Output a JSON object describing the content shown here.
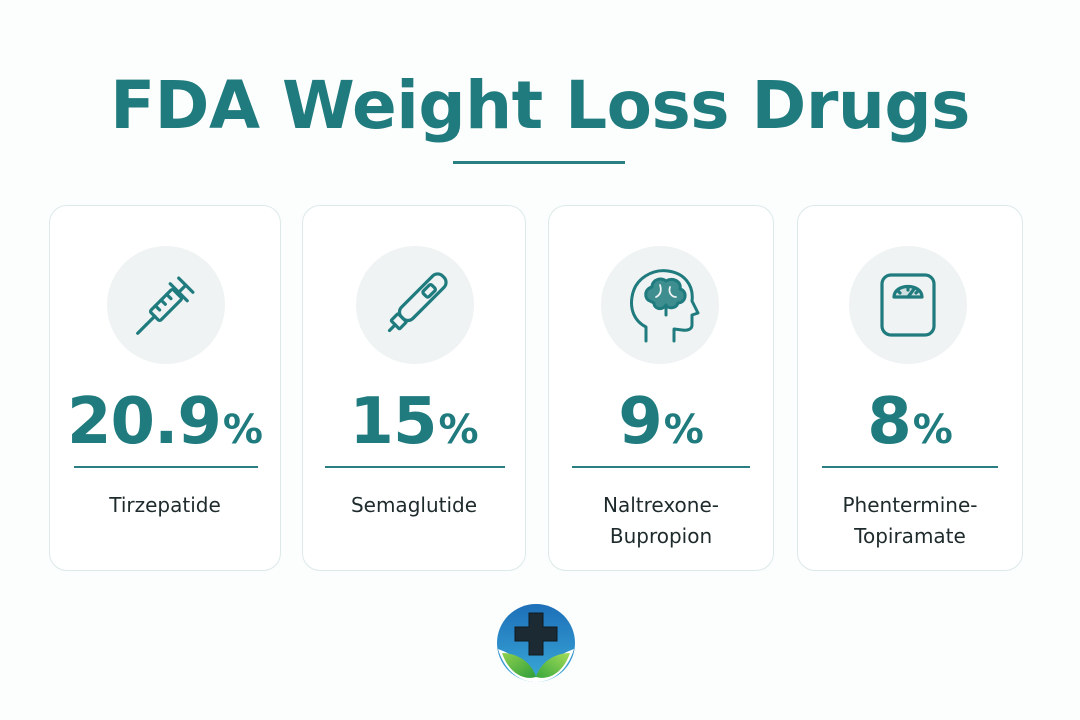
{
  "header": {
    "title": "FDA Weight Loss Drugs"
  },
  "cards": [
    {
      "icon": "syringe-icon",
      "value": "20.9",
      "unit": "%",
      "name_line1": "Tirzepatide",
      "name_line2": ""
    },
    {
      "icon": "injection-pen-icon",
      "value": "15",
      "unit": "%",
      "name_line1": "Semaglutide",
      "name_line2": ""
    },
    {
      "icon": "head-brain-icon",
      "value": "9",
      "unit": "%",
      "name_line1": "Naltrexone-",
      "name_line2": "Bupropion"
    },
    {
      "icon": "weight-scale-icon",
      "value": "8",
      "unit": "%",
      "name_line1": "Phentermine-",
      "name_line2": "Topiramate"
    }
  ],
  "colors": {
    "accent": "#1f7b7e",
    "icon_background": "#eff3f3",
    "card_border": "#dde9e9",
    "text": "#1e2a2c"
  },
  "logo": {
    "icon": "medical-cross-leaf-logo"
  }
}
